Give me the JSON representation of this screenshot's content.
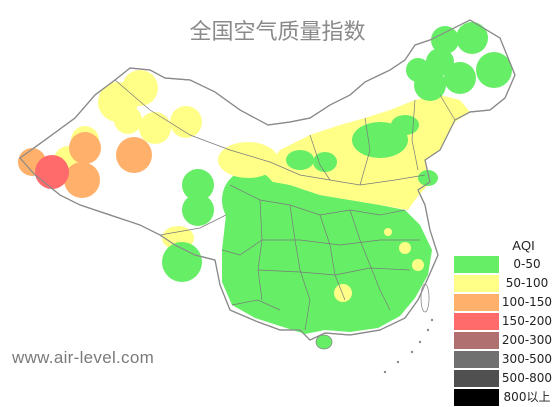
{
  "title": "全国空气质量指数",
  "legend": {
    "title": "AQI",
    "items": [
      {
        "label": "0-50",
        "color": "#66ee66"
      },
      {
        "label": "50-100",
        "color": "#ffff88"
      },
      {
        "label": "100-150",
        "color": "#ffb06a"
      },
      {
        "label": "150-200",
        "color": "#ff6a6a"
      },
      {
        "label": "200-300",
        "color": "#b07070"
      },
      {
        "label": "300-500",
        "color": "#707070"
      },
      {
        "label": "500-800",
        "color": "#505050"
      },
      {
        "label": "800以上",
        "color": "#000000"
      }
    ]
  },
  "watermark": "www.air-level.com"
}
